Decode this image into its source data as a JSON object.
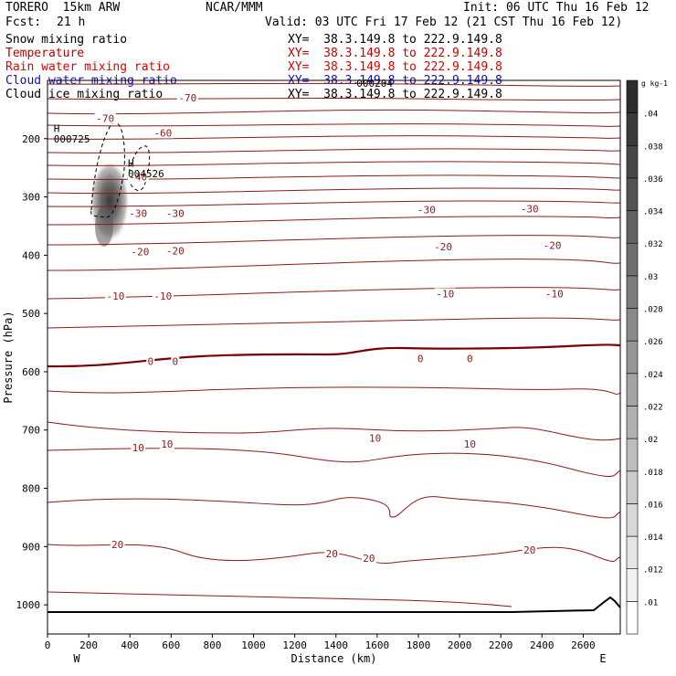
{
  "header": {
    "model": "TORERO  15km ARW",
    "center": "NCAR/MMM",
    "init": "Init: 06 UTC Thu 16 Feb 12",
    "fcst_label": "Fcst:",
    "fcst_value": "21 h",
    "valid": "Valid: 03 UTC Fri 17 Feb 12 (21 CST Thu 16 Feb 12)"
  },
  "legend": [
    {
      "label": "Snow mixing ratio",
      "color": "#000000",
      "xy": "XY=  38.3.149.8 to 222.9.149.8"
    },
    {
      "label": "Temperature",
      "color": "#c00000",
      "xy": "XY=  38.3.149.8 to 222.9.149.8"
    },
    {
      "label": "Rain water mixing ratio",
      "color": "#e00000",
      "xy": "XY=  38.3.149.8 to 222.9.149.8"
    },
    {
      "label": "Cloud water mixing ratio",
      "color": "#1010c0",
      "xy": "XY=  38.3.149.8 to 222.9.149.8"
    },
    {
      "label": "Cloud ice mixing ratio",
      "color": "#000000",
      "xy": "XY=  38.3.149.8 to 222.9.149.8"
    }
  ],
  "colors": {
    "isotherm": "#8b1a1a",
    "zero_isotherm": "#7a0000",
    "ground": "#000000"
  },
  "chart_data": {
    "type": "cross-section",
    "xlabel": "Distance (km)",
    "ylabel": "Pressure (hPa)",
    "xlim": [
      0,
      2780
    ],
    "ylim": [
      1050,
      100
    ],
    "x_ticks": [
      0,
      200,
      400,
      600,
      800,
      1000,
      1200,
      1400,
      1600,
      1800,
      2000,
      2200,
      2400,
      2600
    ],
    "x_tick_labels": [
      "0",
      "200",
      "400",
      "600",
      "800",
      "1000",
      "1200",
      "1400",
      "1600",
      "1800",
      "2000",
      "2200",
      "2400",
      "2600"
    ],
    "y_ticks": [
      200,
      300,
      400,
      500,
      600,
      700,
      800,
      900,
      1000
    ],
    "y_tick_labels": [
      "200",
      "300",
      "400",
      "500",
      "600",
      "700",
      "800",
      "900",
      "1000"
    ],
    "west_label": "W",
    "east_label": "E",
    "colorbar": {
      "unit": "g kg-1",
      "ticks": [
        ".01",
        ".012",
        ".014",
        ".016",
        ".018",
        ".02",
        ".022",
        ".024",
        ".026",
        ".028",
        ".03",
        ".032",
        ".034",
        ".036",
        ".038",
        ".04"
      ]
    },
    "isotherm_labels": [
      {
        "text": "-70",
        "x": 280,
        "p": 165
      },
      {
        "text": "-70",
        "x": 680,
        "p": 130
      },
      {
        "text": "-60",
        "x": 560,
        "p": 190
      },
      {
        "text": "-40",
        "x": 440,
        "p": 265
      },
      {
        "text": "-30",
        "x": 440,
        "p": 328
      },
      {
        "text": "-30",
        "x": 620,
        "p": 328
      },
      {
        "text": "-30",
        "x": 1840,
        "p": 322
      },
      {
        "text": "-30",
        "x": 2340,
        "p": 320
      },
      {
        "text": "-20",
        "x": 450,
        "p": 394
      },
      {
        "text": "-20",
        "x": 620,
        "p": 392
      },
      {
        "text": "-20",
        "x": 1920,
        "p": 385
      },
      {
        "text": "-20",
        "x": 2450,
        "p": 383
      },
      {
        "text": "-10",
        "x": 330,
        "p": 470
      },
      {
        "text": "-10",
        "x": 560,
        "p": 470
      },
      {
        "text": "-10",
        "x": 1930,
        "p": 466
      },
      {
        "text": "-10",
        "x": 2460,
        "p": 466
      },
      {
        "text": "0",
        "x": 500,
        "p": 582
      },
      {
        "text": "0",
        "x": 620,
        "p": 582
      },
      {
        "text": "0",
        "x": 1810,
        "p": 577
      },
      {
        "text": "0",
        "x": 2050,
        "p": 577
      },
      {
        "text": "10",
        "x": 440,
        "p": 730
      },
      {
        "text": "10",
        "x": 580,
        "p": 724
      },
      {
        "text": "10",
        "x": 1590,
        "p": 714
      },
      {
        "text": "10",
        "x": 2050,
        "p": 724
      },
      {
        "text": "20",
        "x": 340,
        "p": 896
      },
      {
        "text": "20",
        "x": 1380,
        "p": 912
      },
      {
        "text": "20",
        "x": 1560,
        "p": 920
      },
      {
        "text": "20",
        "x": 2340,
        "p": 906
      }
    ],
    "point_labels": [
      {
        "text": "H",
        "x": 30,
        "p": 182
      },
      {
        "text": "000725",
        "x": 30,
        "p": 200
      },
      {
        "text": "H",
        "x": 390,
        "p": 242
      },
      {
        "text": "004526",
        "x": 390,
        "p": 260
      },
      {
        "text": "000204",
        "x": 1500,
        "p": 105
      }
    ]
  }
}
